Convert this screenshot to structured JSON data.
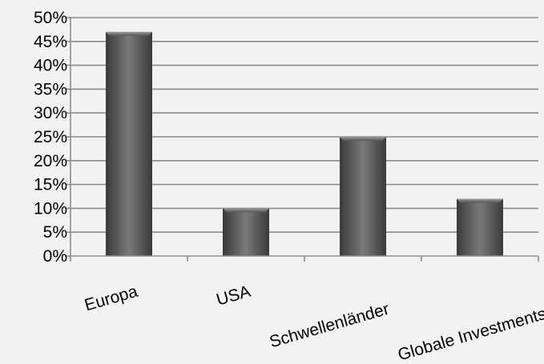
{
  "chart_data": {
    "type": "bar",
    "title": "",
    "xlabel": "",
    "ylabel": "",
    "categories": [
      "Europa",
      "USA",
      "Schwellenländer",
      "Globale Investments"
    ],
    "values": [
      47,
      10,
      25,
      12
    ],
    "ylim": [
      0,
      50
    ],
    "y_ticks": [
      0,
      5,
      10,
      15,
      20,
      25,
      30,
      35,
      40,
      45,
      50
    ],
    "y_tick_labels": [
      "0%",
      "5%",
      "10%",
      "15%",
      "20%",
      "25%",
      "30%",
      "35%",
      "40%",
      "45%",
      "50%"
    ],
    "grid": true,
    "legend": "none",
    "colors": {
      "bar_dark": "#3a3a3a",
      "bar_light": "#7a7a7a",
      "grid": "#8c8c8c",
      "background": "#f2f2f2"
    }
  }
}
